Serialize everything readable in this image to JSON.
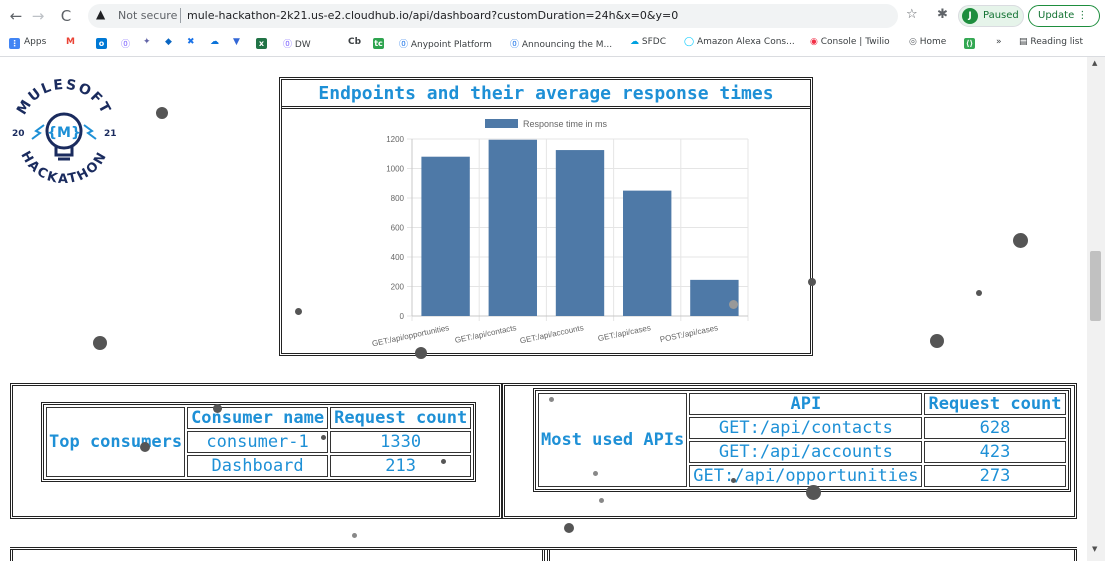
{
  "browser": {
    "not_secure": "Not secure",
    "url": "mule-hackathon-2k21.us-e2.cloudhub.io/api/dashboard?customDuration=24h&x=0&y=0",
    "profile_initial": "J",
    "paused_label": "Paused",
    "update_label": "Update",
    "bookmarks": [
      "Apps",
      "DW",
      "Anypoint Platform",
      "Announcing the M...",
      "SFDC",
      "Amazon Alexa Cons...",
      "Console | Twilio",
      "Home",
      "Reading list"
    ]
  },
  "logo": {
    "top_text": "MULESOFT",
    "bottom_text": "HACKATHON",
    "left_num": "20",
    "right_num": "21"
  },
  "chart_section": {
    "title": "Endpoints and their average response times"
  },
  "chart_data": {
    "type": "bar",
    "categories": [
      "GET:/api/opportunities",
      "GET:/api/contacts",
      "GET:/api/accounts",
      "GET:/api/cases",
      "POST:/api/cases"
    ],
    "series": [
      {
        "name": "Response time in ms",
        "values": [
          1080,
          1195,
          1125,
          850,
          245
        ]
      }
    ],
    "ylim": [
      0,
      1200
    ],
    "yticks": [
      0,
      200,
      400,
      600,
      800,
      1000,
      1200
    ],
    "legend_position": "top",
    "grid": true,
    "bar_color": "#4e79a7"
  },
  "top_consumers": {
    "label": "Top consumers",
    "headers": [
      "Consumer name",
      "Request count"
    ],
    "rows": [
      [
        "consumer-1",
        "1330"
      ],
      [
        "Dashboard",
        "213"
      ]
    ]
  },
  "most_used_apis": {
    "label": "Most used APIs",
    "headers": [
      "API",
      "Request count"
    ],
    "rows": [
      [
        "GET:/api/contacts",
        "628"
      ],
      [
        "GET:/api/accounts",
        "423"
      ],
      [
        "GET:/api/opportunities",
        "273"
      ]
    ]
  },
  "colors": {
    "accent_text": "#1e90d6",
    "bar": "#4e79a7"
  }
}
